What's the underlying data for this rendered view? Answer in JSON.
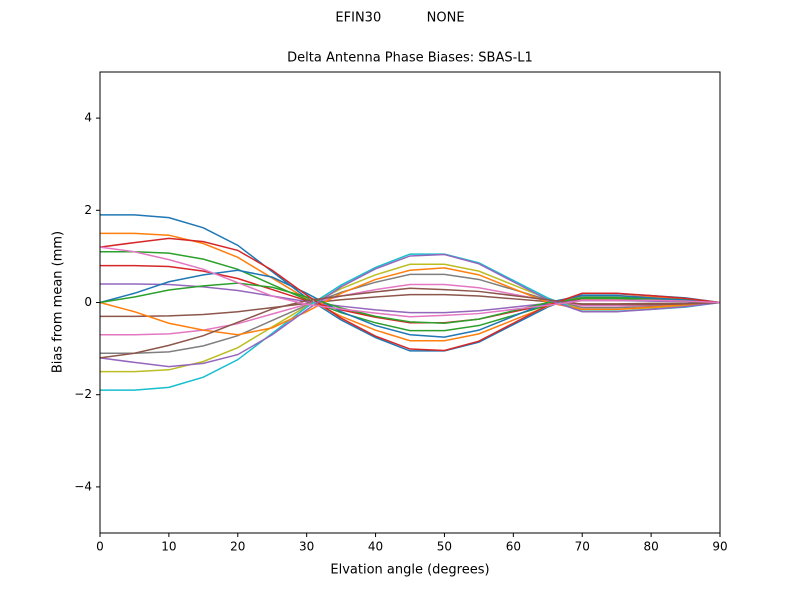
{
  "chart_data": {
    "type": "line",
    "suptitle": "EFIN30           NONE",
    "title": "Delta Antenna Phase Biases: SBAS-L1",
    "xlabel": "Elvation angle (degrees)",
    "ylabel": "Bias from mean (mm)",
    "x": [
      0,
      5,
      10,
      15,
      20,
      25,
      30,
      35,
      40,
      45,
      50,
      55,
      60,
      65,
      70,
      75,
      80,
      85,
      90
    ],
    "xlim": [
      0,
      90
    ],
    "xticks": [
      0,
      10,
      20,
      30,
      40,
      50,
      60,
      70,
      80,
      90
    ],
    "ylim": [
      -5,
      5
    ],
    "yticks": [
      {
        "value": -4,
        "label": "−4"
      },
      {
        "value": -2,
        "label": "−2"
      },
      0,
      2,
      4
    ],
    "series": [
      {
        "color": "#1f77b4",
        "values": [
          1.9,
          1.9,
          1.84,
          1.62,
          1.24,
          0.67,
          0.1,
          -0.38,
          -0.76,
          -1.05,
          -1.05,
          -0.86,
          -0.48,
          -0.1,
          0.19,
          0.19,
          0.15,
          0.1,
          0
        ]
      },
      {
        "color": "#ff7f0e",
        "values": [
          1.5,
          1.5,
          1.46,
          1.28,
          0.98,
          0.53,
          0.08,
          -0.3,
          -0.6,
          -0.83,
          -0.83,
          -0.68,
          -0.38,
          -0.08,
          0.15,
          0.15,
          0.12,
          0.08,
          0
        ]
      },
      {
        "color": "#2ca02c",
        "values": [
          1.1,
          1.1,
          1.07,
          0.94,
          0.72,
          0.39,
          0.06,
          -0.22,
          -0.44,
          -0.61,
          -0.61,
          -0.5,
          -0.28,
          -0.06,
          0.11,
          0.11,
          0.09,
          0.06,
          0
        ]
      },
      {
        "color": "#d62728",
        "values": [
          0.8,
          0.8,
          0.78,
          0.68,
          0.52,
          0.28,
          0.04,
          -0.16,
          -0.32,
          -0.44,
          -0.44,
          -0.36,
          -0.2,
          -0.04,
          0.08,
          0.08,
          0.06,
          0.04,
          0
        ]
      },
      {
        "color": "#9467bd",
        "values": [
          0.4,
          0.4,
          0.39,
          0.34,
          0.26,
          0.14,
          0.02,
          -0.08,
          -0.16,
          -0.22,
          -0.22,
          -0.18,
          -0.1,
          -0.02,
          0.04,
          0.04,
          0.03,
          0.02,
          0
        ]
      },
      {
        "color": "#8c564b",
        "values": [
          -0.3,
          -0.3,
          -0.29,
          -0.26,
          -0.2,
          -0.11,
          -0.02,
          0.06,
          0.12,
          0.17,
          0.17,
          0.14,
          0.08,
          0.02,
          -0.03,
          -0.03,
          -0.02,
          -0.02,
          0
        ]
      },
      {
        "color": "#e377c2",
        "values": [
          -0.7,
          -0.7,
          -0.68,
          -0.6,
          -0.46,
          -0.25,
          -0.04,
          0.14,
          0.28,
          0.39,
          0.39,
          0.32,
          0.18,
          0.04,
          -0.07,
          -0.07,
          -0.06,
          -0.04,
          0
        ]
      },
      {
        "color": "#7f7f7f",
        "values": [
          -1.1,
          -1.1,
          -1.07,
          -0.94,
          -0.72,
          -0.39,
          -0.06,
          0.22,
          0.44,
          0.61,
          0.61,
          0.5,
          0.28,
          0.06,
          -0.11,
          -0.11,
          -0.09,
          -0.06,
          0
        ]
      },
      {
        "color": "#bcbd22",
        "values": [
          -1.5,
          -1.5,
          -1.46,
          -1.28,
          -0.98,
          -0.53,
          -0.08,
          0.3,
          0.6,
          0.83,
          0.83,
          0.68,
          0.38,
          0.08,
          -0.15,
          -0.15,
          -0.12,
          -0.08,
          0
        ]
      },
      {
        "color": "#17becf",
        "values": [
          -1.9,
          -1.9,
          -1.84,
          -1.62,
          -1.24,
          -0.67,
          -0.1,
          0.38,
          0.76,
          1.05,
          1.05,
          0.86,
          0.48,
          0.1,
          -0.19,
          -0.19,
          -0.15,
          -0.1,
          0
        ]
      },
      {
        "color": "#1f77b4",
        "values": [
          0,
          0.2,
          0.45,
          0.6,
          0.7,
          0.55,
          0.2,
          -0.2,
          -0.5,
          -0.7,
          -0.75,
          -0.6,
          -0.3,
          0,
          0.15,
          0.15,
          0.1,
          0.05,
          0
        ]
      },
      {
        "color": "#ff7f0e",
        "values": [
          0,
          -0.2,
          -0.45,
          -0.6,
          -0.7,
          -0.55,
          -0.2,
          0.2,
          0.5,
          0.7,
          0.75,
          0.6,
          0.3,
          0,
          -0.15,
          -0.15,
          -0.1,
          -0.05,
          0
        ]
      },
      {
        "color": "#2ca02c",
        "values": [
          0,
          0.12,
          0.27,
          0.36,
          0.42,
          0.33,
          0.12,
          -0.12,
          -0.3,
          -0.42,
          -0.45,
          -0.36,
          -0.18,
          0,
          0.09,
          0.09,
          0.06,
          0.03,
          0
        ]
      },
      {
        "color": "#d62728",
        "values": [
          1.2,
          1.3,
          1.39,
          1.32,
          1.13,
          0.7,
          0.16,
          -0.34,
          -0.73,
          -1.01,
          -1.04,
          -0.84,
          -0.45,
          -0.06,
          0.2,
          0.2,
          0.15,
          0.09,
          0
        ]
      },
      {
        "color": "#9467bd",
        "values": [
          -1.2,
          -1.3,
          -1.39,
          -1.32,
          -1.13,
          -0.7,
          -0.16,
          0.34,
          0.73,
          1.01,
          1.04,
          0.84,
          0.45,
          0.06,
          -0.2,
          -0.2,
          -0.15,
          -0.09,
          0
        ]
      },
      {
        "color": "#8c564b",
        "values": [
          -1.2,
          -1.1,
          -0.93,
          -0.72,
          -0.43,
          -0.14,
          0.04,
          0.14,
          0.23,
          0.31,
          0.28,
          0.24,
          0.15,
          0.06,
          -0.04,
          -0.04,
          -0.05,
          -0.03,
          0
        ]
      },
      {
        "color": "#e377c2",
        "values": [
          1.2,
          1.1,
          0.93,
          0.72,
          0.43,
          0.14,
          -0.04,
          -0.14,
          -0.23,
          -0.31,
          -0.28,
          -0.24,
          -0.15,
          -0.06,
          0.04,
          0.04,
          0.05,
          0.03,
          0
        ]
      }
    ]
  }
}
